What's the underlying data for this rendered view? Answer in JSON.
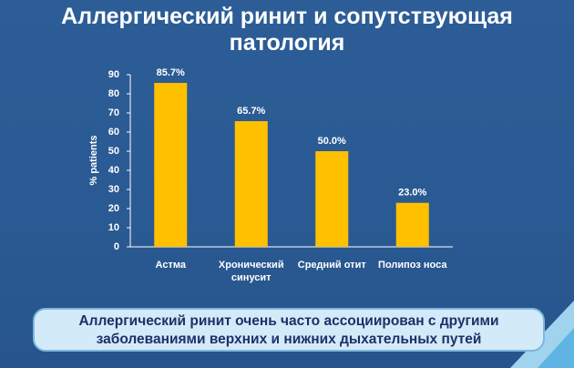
{
  "chart_data": {
    "type": "bar",
    "title": "Аллергический ринит и сопутствующая патология",
    "y_label": "% patients",
    "categories": [
      [
        "Астма"
      ],
      [
        "Хронический",
        "синусит"
      ],
      [
        "Средний отит"
      ],
      [
        "Полипоз носа"
      ]
    ],
    "values": [
      85.7,
      65.7,
      50.0,
      23.0
    ],
    "value_labels": [
      "85.7%",
      "65.7%",
      "50.0%",
      "23.0%"
    ],
    "color": "#ffc000",
    "ylim": [
      0,
      90
    ],
    "yticks": [
      0,
      10,
      20,
      30,
      40,
      50,
      60,
      70,
      80,
      90
    ],
    "grid": false,
    "annotation": "Аллергический ринит очень часто ассоциирован с другими заболеваниями верхних и нижних дыхательных путей"
  }
}
